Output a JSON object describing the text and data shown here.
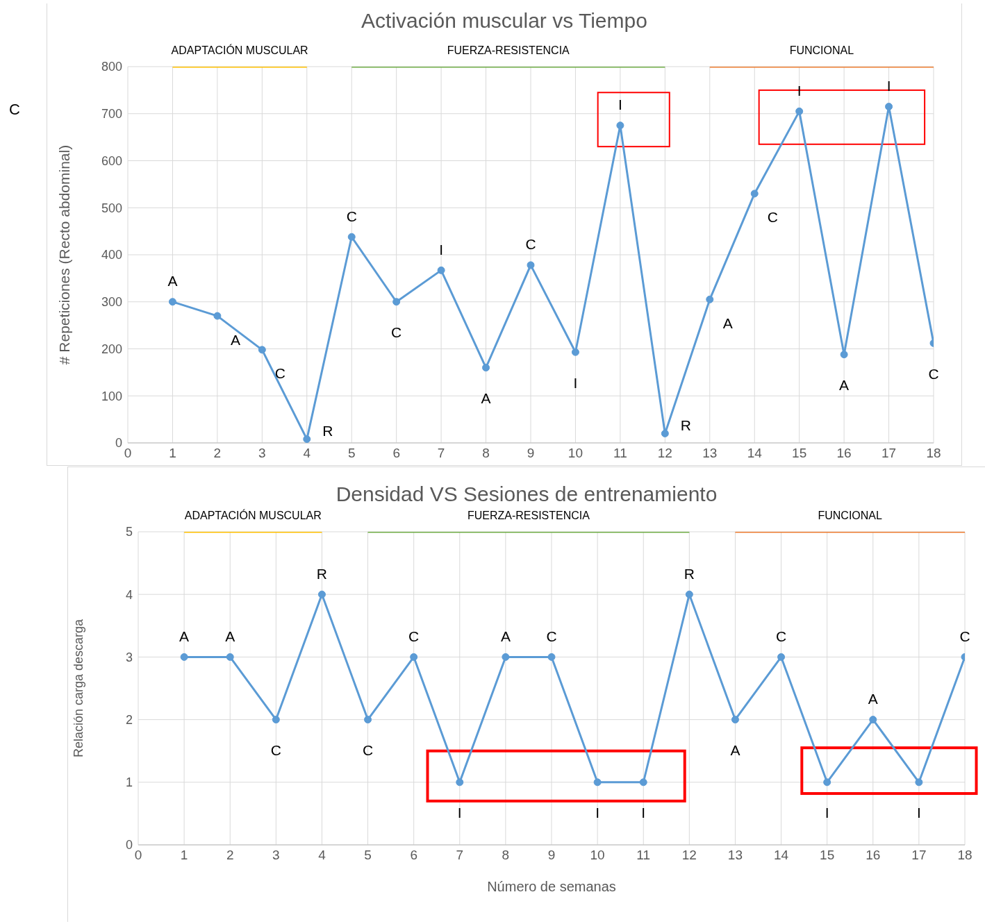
{
  "chart_data": [
    {
      "type": "line",
      "title": "Activación muscular vs  Tiempo",
      "ylabel": "# Repeticiones (Recto abdominal)",
      "xlim": [
        0,
        18
      ],
      "xticks": [
        0,
        1,
        2,
        3,
        4,
        5,
        6,
        7,
        8,
        9,
        10,
        11,
        12,
        13,
        14,
        15,
        16,
        17,
        18
      ],
      "ylim": [
        0,
        800
      ],
      "yticks": [
        0,
        100,
        200,
        300,
        400,
        500,
        600,
        700,
        800
      ],
      "grid": true,
      "legend": false,
      "marker": "circle",
      "line_style": "solid",
      "series": [
        {
          "color": "#5b9bd5",
          "x": [
            1,
            2,
            3,
            4,
            5,
            6,
            7,
            8,
            9,
            10,
            11,
            12,
            13,
            14,
            15,
            16,
            17,
            18
          ],
          "values": [
            300,
            270,
            198,
            8,
            438,
            300,
            367,
            160,
            378,
            193,
            675,
            20,
            305,
            530,
            705,
            188,
            715,
            212
          ]
        },
        {
          "type": "line",
          "name": "ADAPTACIÓN MUSCULAR",
          "color": "#ffc000",
          "marker": "none",
          "x": [
            1,
            4
          ],
          "values": [
            800,
            800
          ]
        },
        {
          "type": "line",
          "name": "FUERZA-RESISTENCIA",
          "color": "#70ad47",
          "marker": "none",
          "x": [
            5,
            12
          ],
          "values": [
            800,
            800
          ]
        },
        {
          "type": "line",
          "name": "FUNCIONAL",
          "color": "#ed7d31",
          "marker": "none",
          "x": [
            13,
            18
          ],
          "values": [
            800,
            800
          ]
        }
      ],
      "annotations": [
        "A",
        "A",
        "C",
        "R",
        "C",
        "C",
        "I",
        "A",
        "C",
        "I",
        "I",
        "R",
        "A",
        "C",
        "I",
        "A",
        "I",
        "C",
        "C"
      ]
    },
    {
      "type": "line",
      "title": "Densidad VS Sesiones de entrenamiento",
      "xlabel": "Número de semanas",
      "ylabel": "Relación carga descarga",
      "xlim": [
        0,
        18
      ],
      "xticks": [
        0,
        1,
        2,
        3,
        4,
        5,
        6,
        7,
        8,
        9,
        10,
        11,
        12,
        13,
        14,
        15,
        16,
        17,
        18
      ],
      "ylim": [
        0,
        5
      ],
      "yticks": [
        0,
        1,
        2,
        3,
        4,
        5
      ],
      "grid": true,
      "legend": false,
      "marker": "circle",
      "line_style": "solid",
      "series": [
        {
          "color": "#5b9bd5",
          "x": [
            1,
            2,
            3,
            4,
            5,
            6,
            7,
            8,
            9,
            10,
            11,
            12,
            13,
            14,
            15,
            16,
            17,
            18
          ],
          "values": [
            3,
            3,
            2,
            4,
            2,
            3,
            1,
            3,
            3,
            1,
            1,
            4,
            2,
            3,
            1,
            2,
            1,
            3
          ]
        },
        {
          "type": "line",
          "name": "ADAPTACIÓN MUSCULAR",
          "color": "#ffc000",
          "marker": "none",
          "x": [
            1,
            4
          ],
          "values": [
            5,
            5
          ]
        },
        {
          "type": "line",
          "name": "FUERZA-RESISTENCIA",
          "color": "#70ad47",
          "marker": "none",
          "x": [
            5,
            12
          ],
          "values": [
            5,
            5
          ]
        },
        {
          "type": "line",
          "name": "FUNCIONAL",
          "color": "#ed7d31",
          "marker": "none",
          "x": [
            13,
            18
          ],
          "values": [
            5,
            5
          ]
        }
      ],
      "annotations": [
        "A",
        "A",
        "C",
        "R",
        "C",
        "C",
        "I",
        "A",
        "C",
        "I",
        "I",
        "R",
        "A",
        "C",
        "I",
        "A",
        "I",
        "C"
      ]
    }
  ]
}
